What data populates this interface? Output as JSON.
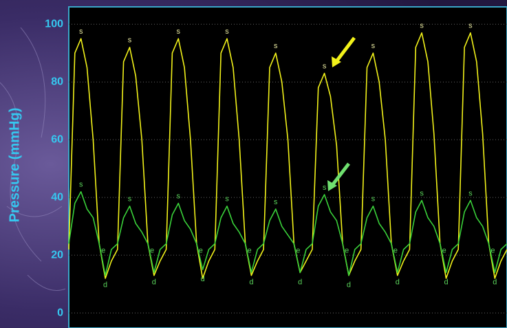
{
  "chart_data": {
    "type": "line",
    "y_label": "Pressure (mmHg)",
    "ylim": [
      -5.2,
      106
    ],
    "yticks": [
      0,
      20,
      40,
      60,
      80,
      100
    ],
    "grid": true,
    "series": [
      {
        "color": "#f2f21a",
        "values": [
          22,
          90,
          95,
          85,
          60,
          24,
          12,
          18,
          22,
          87,
          92,
          82,
          60,
          24,
          13,
          18,
          22,
          90,
          95,
          85,
          60,
          24,
          12,
          18,
          22,
          90,
          95,
          85,
          60,
          24,
          13,
          18,
          22,
          85,
          90,
          80,
          60,
          24,
          14,
          18,
          22,
          78,
          83,
          75,
          58,
          24,
          13,
          18,
          22,
          85,
          90,
          80,
          60,
          24,
          13,
          18,
          22,
          92,
          97,
          87,
          62,
          24,
          12,
          18,
          22,
          92,
          97,
          87,
          62,
          24,
          12,
          18,
          22
        ],
        "point_labels": [
          null,
          null,
          "s",
          null,
          null,
          null,
          null,
          null,
          null,
          null,
          "s",
          null,
          null,
          null,
          null,
          null,
          null,
          null,
          "s",
          null,
          null,
          null,
          null,
          null,
          null,
          null,
          "s",
          null,
          null,
          null,
          null,
          null,
          null,
          null,
          "s",
          null,
          null,
          null,
          null,
          null,
          null,
          null,
          "s",
          null,
          null,
          null,
          null,
          null,
          null,
          null,
          "s",
          null,
          null,
          null,
          null,
          null,
          null,
          null,
          "s",
          null,
          null,
          null,
          null,
          null,
          null,
          null,
          "s",
          null,
          null,
          null,
          null,
          null,
          null
        ]
      },
      {
        "color": "#3ad23a",
        "values": [
          24,
          38,
          42,
          36,
          33,
          24,
          13,
          22,
          24,
          33,
          37,
          31,
          28,
          24,
          14,
          22,
          24,
          34,
          38,
          32,
          29,
          24,
          15,
          22,
          24,
          33,
          37,
          31,
          28,
          24,
          14,
          22,
          24,
          32,
          36,
          30,
          27,
          24,
          14,
          22,
          24,
          37,
          41,
          35,
          32,
          24,
          13,
          22,
          24,
          33,
          37,
          31,
          28,
          24,
          14,
          22,
          24,
          35,
          39,
          33,
          30,
          24,
          14,
          22,
          24,
          35,
          39,
          33,
          30,
          24,
          14,
          22,
          24
        ],
        "point_labels": [
          null,
          null,
          "s",
          null,
          null,
          "e",
          "d",
          null,
          null,
          null,
          "s",
          null,
          null,
          "e",
          "d",
          null,
          null,
          null,
          "s",
          null,
          null,
          "e",
          "d",
          null,
          null,
          null,
          "s",
          null,
          null,
          "e",
          "d",
          null,
          null,
          null,
          "s",
          null,
          null,
          "e",
          "d",
          null,
          null,
          null,
          "s",
          null,
          null,
          "e",
          "d",
          null,
          null,
          null,
          "s",
          null,
          null,
          "e",
          "d",
          null,
          null,
          null,
          "s",
          null,
          null,
          "e",
          "d",
          null,
          null,
          null,
          "s",
          null,
          null,
          "e",
          "d",
          null,
          null
        ]
      }
    ]
  }
}
